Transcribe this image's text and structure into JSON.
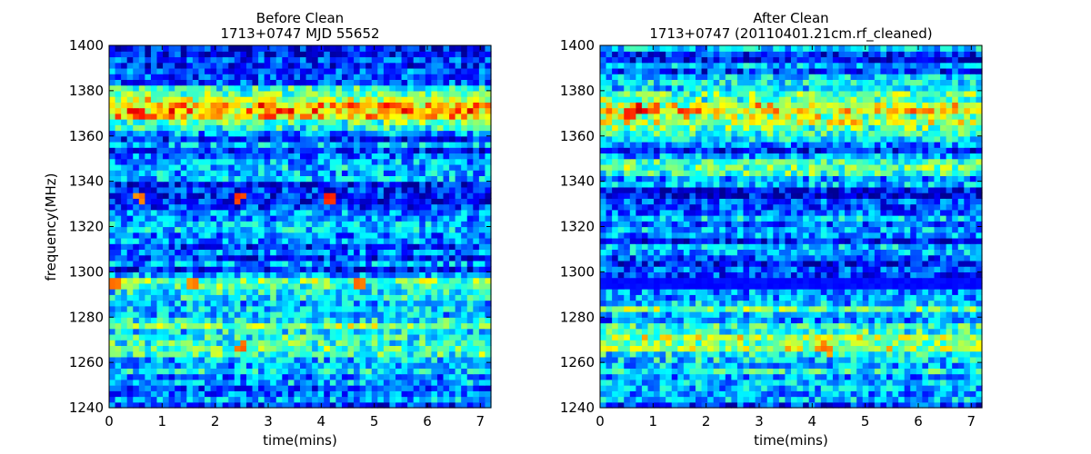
{
  "chart_data": [
    {
      "type": "heatmap",
      "title": "Before Clean",
      "subtitle": "1713+0747 MJD 55652",
      "xlabel": "time(mins)",
      "ylabel": "frequency(MHz)",
      "xlim": [
        0,
        7.2
      ],
      "ylim": [
        1240,
        1400
      ],
      "xticks": [
        "0",
        "1",
        "2",
        "3",
        "4",
        "5",
        "6",
        "7"
      ],
      "yticks": [
        "1240",
        "1260",
        "1280",
        "1300",
        "1320",
        "1340",
        "1360",
        "1380",
        "1400"
      ],
      "colormap": "jet",
      "grid": false,
      "time_bins": 64,
      "freq_bins": 64,
      "seed": 17,
      "bands": [
        {
          "f": 1372,
          "width": 6,
          "amp": 0.45
        },
        {
          "f": 1346,
          "width": 3,
          "amp": 0.18
        },
        {
          "f": 1294,
          "width": 3,
          "amp": 0.28
        },
        {
          "f": 1270,
          "width": 10,
          "amp": 0.25
        },
        {
          "f": 1318,
          "width": 2.5,
          "amp": 0.08
        }
      ],
      "hot_spots": [
        {
          "t": 0.45,
          "f": 1371,
          "v": 0.92
        },
        {
          "t": 0.6,
          "f": 1370,
          "v": 0.88
        },
        {
          "t": 2.45,
          "f": 1333,
          "v": 0.85
        },
        {
          "t": 4.15,
          "f": 1333,
          "v": 0.88
        },
        {
          "t": 2.5,
          "f": 1267,
          "v": 0.8
        },
        {
          "t": 0.1,
          "f": 1295,
          "v": 0.8
        },
        {
          "t": 1.6,
          "f": 1295,
          "v": 0.78
        },
        {
          "t": 4.7,
          "f": 1295,
          "v": 0.8
        },
        {
          "t": 0.6,
          "f": 1333,
          "v": 0.78
        }
      ],
      "masked_bands": []
    },
    {
      "type": "heatmap",
      "title": "After Clean",
      "subtitle": "1713+0747  (20110401.21cm.rf_cleaned)",
      "xlabel": "time(mins)",
      "ylabel": "",
      "xlim": [
        0,
        7.2
      ],
      "ylim": [
        1240,
        1400
      ],
      "xticks": [
        "0",
        "1",
        "2",
        "3",
        "4",
        "5",
        "6",
        "7"
      ],
      "yticks": [
        "1240",
        "1260",
        "1280",
        "1300",
        "1320",
        "1340",
        "1360",
        "1380",
        "1400"
      ],
      "colormap": "jet",
      "grid": false,
      "time_bins": 64,
      "freq_bins": 64,
      "seed": 29,
      "bands": [
        {
          "f": 1372,
          "width": 6,
          "amp": 0.48
        },
        {
          "f": 1346,
          "width": 3,
          "amp": 0.18
        },
        {
          "f": 1285,
          "width": 3,
          "amp": 0.18
        },
        {
          "f": 1268,
          "width": 9,
          "amp": 0.25
        },
        {
          "f": 1318,
          "width": 2.5,
          "amp": 0.08
        }
      ],
      "hot_spots": [
        {
          "t": 0.75,
          "f": 1372,
          "v": 0.95
        },
        {
          "t": 0.55,
          "f": 1370,
          "v": 0.88
        },
        {
          "t": 1.6,
          "f": 1371,
          "v": 0.82
        },
        {
          "t": 4.2,
          "f": 1267,
          "v": 0.78
        },
        {
          "t": 4.3,
          "f": 1266,
          "v": 0.76
        }
      ],
      "masked_bands": [
        [
          1292,
          1298
        ]
      ]
    }
  ]
}
